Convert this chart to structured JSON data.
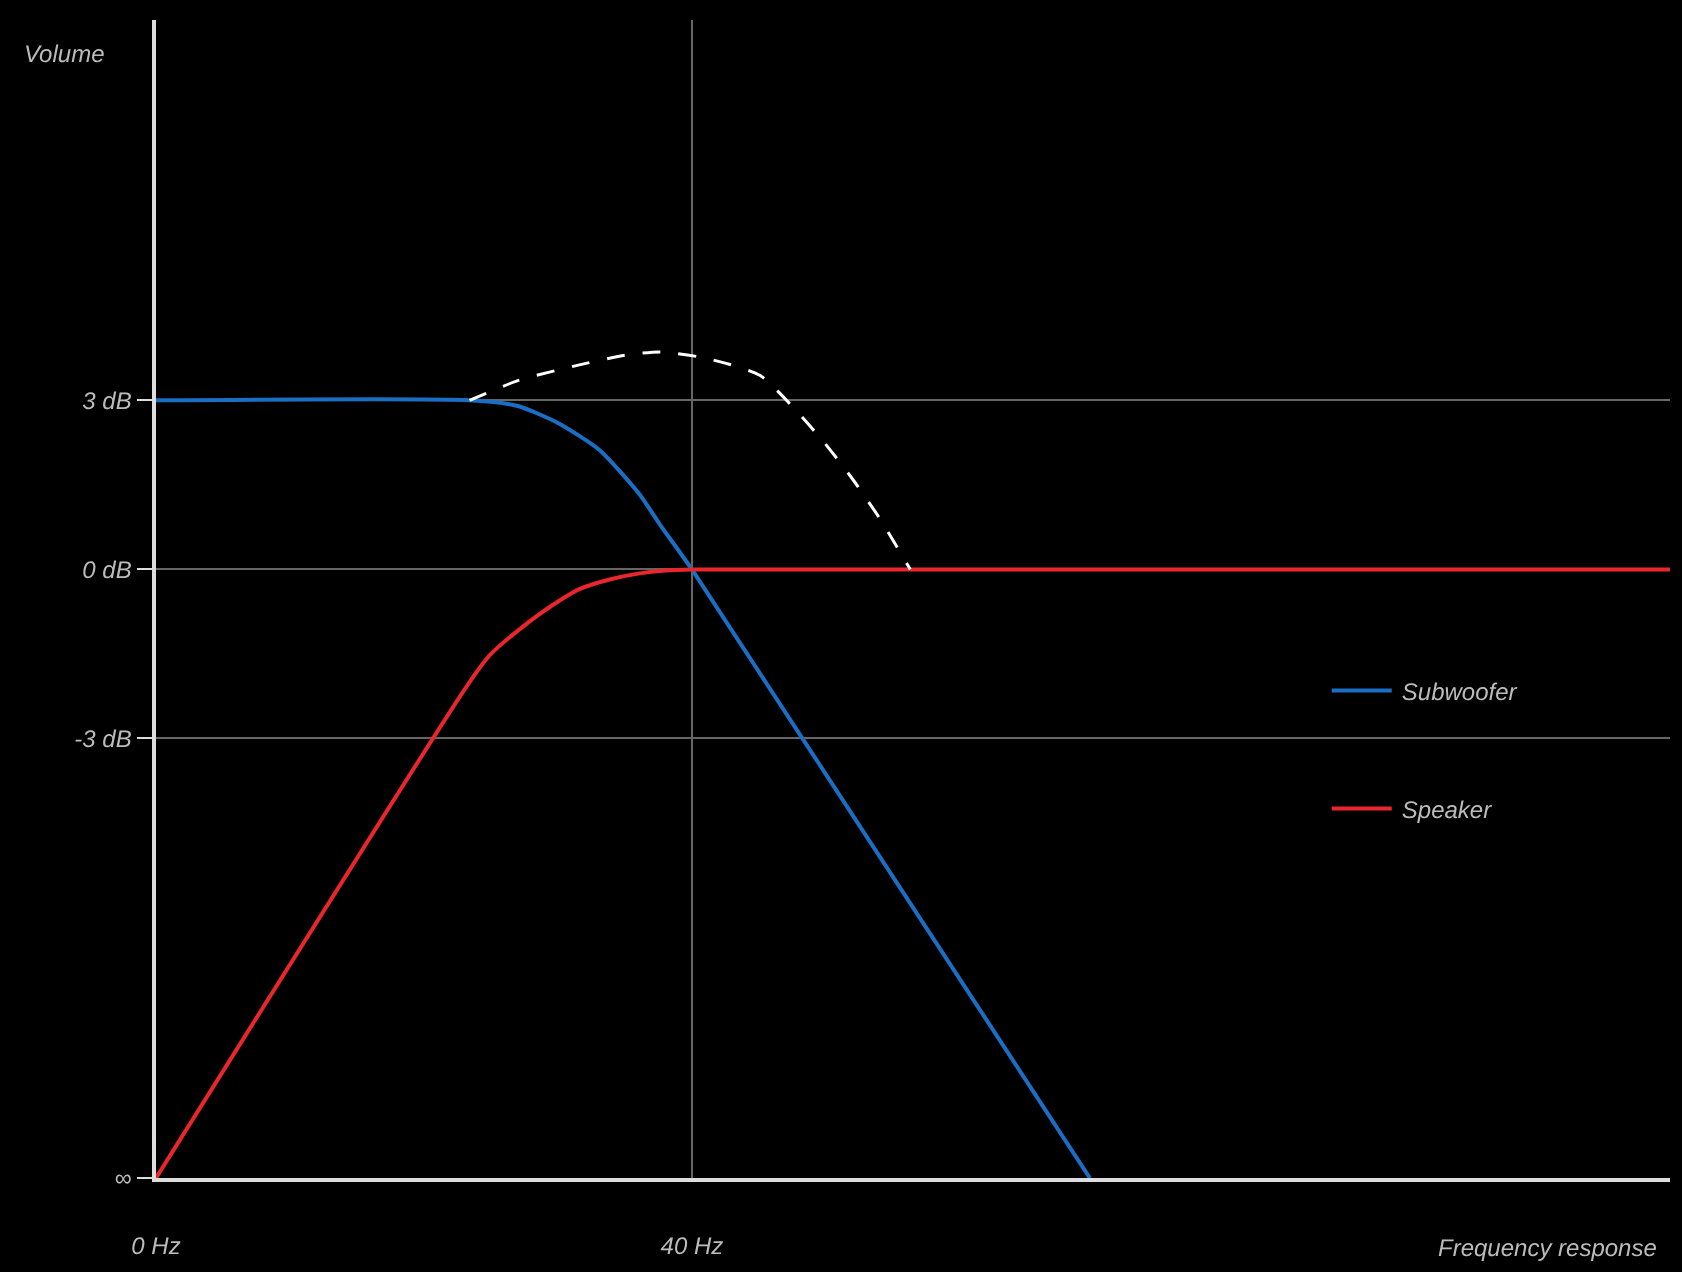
{
  "chart_data": {
    "type": "line",
    "xlabel": "Frequency response",
    "ylabel": "Volume",
    "xlim": [
      0,
      113
    ],
    "xticks": [
      {
        "value": 0,
        "label": "0 Hz"
      },
      {
        "value": 40,
        "label": "40 Hz"
      }
    ],
    "ylim": [
      -10.8,
      9.75
    ],
    "yticks": [
      {
        "value": -10.8,
        "label": "∞"
      },
      {
        "value": -3,
        "label": "-3 dB"
      },
      {
        "value": 0,
        "label": "0 dB"
      },
      {
        "value": 3,
        "label": "3 dB"
      }
    ],
    "grid": true,
    "legend": "right",
    "marker": "none",
    "series": [
      {
        "name": "Subwoofer",
        "color": "#1a6fc4",
        "x": [
          0,
          23.4,
          27,
          30,
          33.1,
          36.1,
          37.6,
          40,
          69.7
        ],
        "values": [
          3,
          3,
          2.9,
          2.6,
          2.12,
          1.33,
          0.8,
          0,
          -10.8
        ]
      },
      {
        "name": "Speaker",
        "color": "#e8262b",
        "x": [
          0,
          23.4,
          25,
          27.2,
          29.5,
          31.6,
          34,
          36.1,
          38,
          40,
          113
        ],
        "values": [
          -10.8,
          -2.0,
          -1.5,
          -1.05,
          -0.65,
          -0.35,
          -0.17,
          -0.07,
          -0.02,
          0,
          0
        ]
      },
      {
        "color": "#ffffff",
        "line_style": "dashed",
        "x": [
          23.4,
          27,
          31.6,
          35,
          37.6,
          41,
          45.1,
          49.6,
          52,
          54,
          56.3
        ],
        "values": [
          3,
          3.35,
          3.63,
          3.8,
          3.86,
          3.75,
          3.44,
          2.33,
          1.6,
          0.91,
          0
        ]
      }
    ]
  }
}
